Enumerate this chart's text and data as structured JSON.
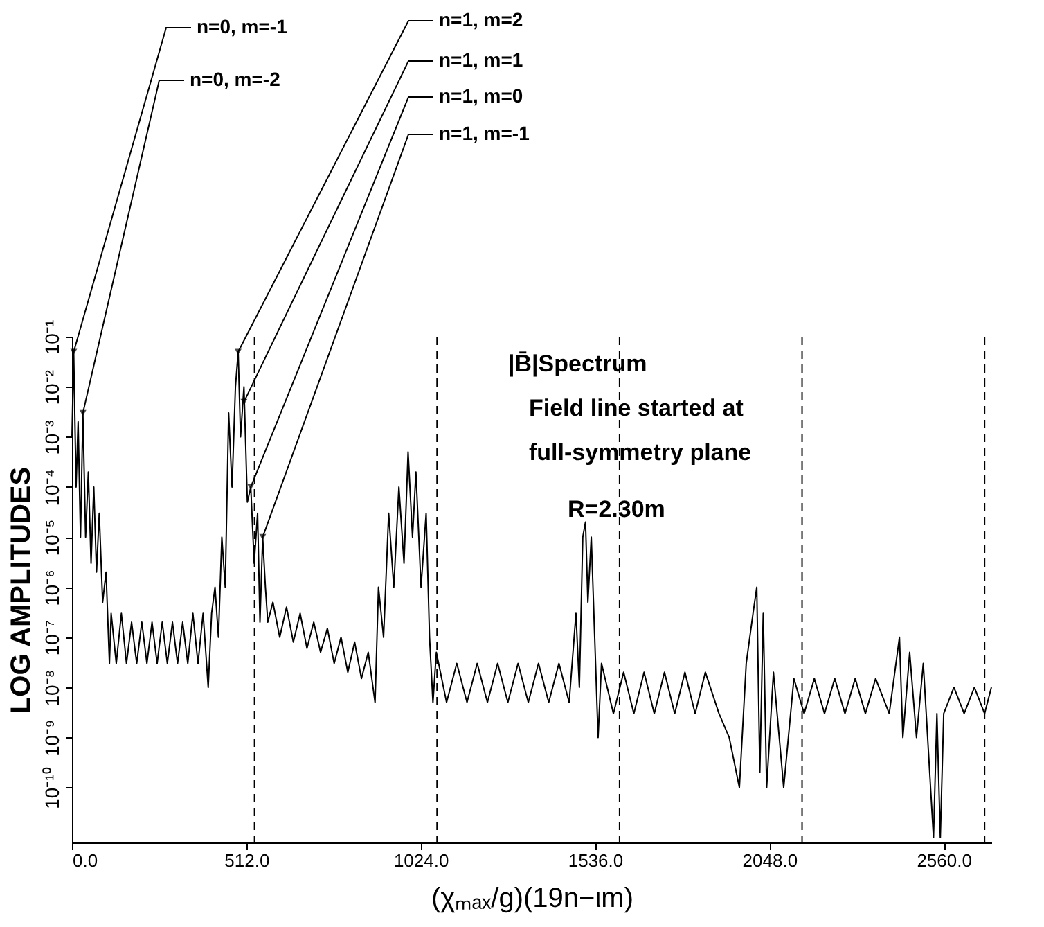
{
  "chart_data": {
    "type": "line",
    "xlabel": "(χₘₐₓ/g)(19n−ιm)",
    "ylabel": "LOG AMPLITUDES",
    "log": "y",
    "grid": false,
    "marker": "none",
    "line_style": "solid",
    "xlim": [
      0,
      2700
    ],
    "ylim": [
      8e-12,
      0.1
    ],
    "xticks": [
      {
        "value": 0,
        "label": "0.0"
      },
      {
        "value": 512,
        "label": "512.0"
      },
      {
        "value": 1024,
        "label": "1024.0"
      },
      {
        "value": 1536,
        "label": "1536.0"
      },
      {
        "value": 2048,
        "label": "2048.0"
      },
      {
        "value": 2560,
        "label": "2560.0"
      }
    ],
    "yticks": [
      {
        "value": 1e-10,
        "label": "10⁻¹⁰"
      },
      {
        "value": 1e-09,
        "label": "10⁻⁹"
      },
      {
        "value": 1e-08,
        "label": "10⁻⁸"
      },
      {
        "value": 1e-07,
        "label": "10⁻⁷"
      },
      {
        "value": 1e-06,
        "label": "10⁻⁶"
      },
      {
        "value": 1e-05,
        "label": "10⁻⁵"
      },
      {
        "value": 0.0001,
        "label": "10⁻⁴"
      },
      {
        "value": 0.001,
        "label": "10⁻³"
      },
      {
        "value": 0.01,
        "label": "10⁻²"
      },
      {
        "value": 0.1,
        "label": "10⁻¹"
      }
    ],
    "series": [
      {
        "color": "#000000",
        "x": [
          0,
          5,
          12,
          18,
          25,
          32,
          40,
          48,
          56,
          64,
          72,
          80,
          90,
          100,
          110,
          115,
          130,
          145,
          160,
          175,
          190,
          205,
          220,
          235,
          250,
          265,
          280,
          295,
          310,
          325,
          340,
          355,
          370,
          385,
          400,
          410,
          420,
          430,
          440,
          450,
          460,
          470,
          480,
          488,
          495,
          505,
          515,
          525,
          535,
          545,
          552,
          560,
          568,
          575,
          590,
          610,
          630,
          650,
          670,
          690,
          710,
          730,
          750,
          770,
          790,
          810,
          830,
          850,
          870,
          890,
          900,
          915,
          930,
          945,
          960,
          975,
          987,
          1000,
          1010,
          1025,
          1040,
          1050,
          1060,
          1070,
          1100,
          1130,
          1160,
          1190,
          1220,
          1250,
          1280,
          1310,
          1340,
          1370,
          1400,
          1430,
          1460,
          1480,
          1490,
          1500,
          1508,
          1515,
          1525,
          1535,
          1545,
          1555,
          1590,
          1620,
          1650,
          1680,
          1710,
          1740,
          1770,
          1800,
          1830,
          1860,
          1900,
          1930,
          1960,
          1980,
          2000,
          2011,
          2020,
          2030,
          2040,
          2060,
          2090,
          2120,
          2150,
          2180,
          2210,
          2240,
          2270,
          2300,
          2330,
          2360,
          2400,
          2430,
          2440,
          2460,
          2480,
          2500,
          2530,
          2540,
          2550,
          2560,
          2590,
          2620,
          2650,
          2680,
          2700
        ],
        "values": [
          0.001,
          0.05,
          0.0001,
          0.002,
          1e-05,
          0.003,
          1e-05,
          0.0002,
          3e-06,
          0.0001,
          2e-06,
          3e-05,
          5e-07,
          2e-06,
          3e-08,
          3e-07,
          3e-08,
          3e-07,
          3e-08,
          2e-07,
          3e-08,
          2e-07,
          3e-08,
          2e-07,
          3e-08,
          2e-07,
          3e-08,
          2e-07,
          3e-08,
          2e-07,
          3e-08,
          3e-07,
          3e-08,
          3e-07,
          1e-08,
          3e-07,
          1e-06,
          1e-07,
          1e-05,
          1e-06,
          0.003,
          0.0001,
          0.01,
          0.05,
          0.001,
          0.01,
          5e-05,
          0.0001,
          3e-06,
          3e-05,
          2e-07,
          1e-05,
          1e-06,
          2e-07,
          5e-07,
          1e-07,
          4e-07,
          8e-08,
          3e-07,
          6e-08,
          2e-07,
          5e-08,
          1.5e-07,
          3e-08,
          1e-07,
          2e-08,
          8e-08,
          1.5e-08,
          5e-08,
          5e-09,
          1e-06,
          1e-07,
          3e-05,
          1e-06,
          0.0001,
          3e-06,
          0.0005,
          1e-05,
          0.0002,
          1e-06,
          3e-05,
          1e-07,
          5e-09,
          5e-08,
          5e-09,
          3e-08,
          5e-09,
          3e-08,
          5e-09,
          3e-08,
          5e-09,
          3e-08,
          5e-09,
          3e-08,
          5e-09,
          3e-08,
          5e-09,
          3e-07,
          1e-08,
          1e-05,
          2e-05,
          5e-07,
          1e-05,
          1e-07,
          1e-09,
          3e-08,
          3e-09,
          2e-08,
          3e-09,
          2e-08,
          3e-09,
          2e-08,
          3e-09,
          2e-08,
          3e-09,
          2e-08,
          3e-09,
          1e-09,
          1e-10,
          3e-08,
          3e-07,
          1e-06,
          2e-10,
          3e-07,
          1e-10,
          2e-08,
          1e-10,
          1.5e-08,
          3e-09,
          1.5e-08,
          3e-09,
          1.5e-08,
          3e-09,
          1.5e-08,
          3e-09,
          1.5e-08,
          3e-09,
          1e-07,
          1e-09,
          5e-08,
          1e-09,
          3e-08,
          1e-11,
          3e-09,
          1e-11,
          3e-09,
          1e-08,
          3e-09,
          1e-08,
          3e-09,
          1e-08
        ]
      }
    ],
    "ref_lines": [
      {
        "axis": "x",
        "value": 536,
        "line_style": "dashed",
        "color": "#000000"
      },
      {
        "axis": "x",
        "value": 1072,
        "line_style": "dashed",
        "color": "#000000"
      },
      {
        "axis": "x",
        "value": 1608,
        "line_style": "dashed",
        "color": "#000000"
      },
      {
        "axis": "x",
        "value": 2144,
        "line_style": "dashed",
        "color": "#000000"
      },
      {
        "axis": "x",
        "value": 2680,
        "line_style": "dashed",
        "color": "#000000"
      }
    ],
    "annotations": [
      {
        "text": "n=0, m=-1",
        "x": 5,
        "y": 0.05
      },
      {
        "text": "n=0, m=-2",
        "x": 32,
        "y": 0.003
      },
      {
        "text": "n=1, m=2",
        "x": 488,
        "y": 0.05
      },
      {
        "text": "n=1, m=1",
        "x": 505,
        "y": 0.005
      },
      {
        "text": "n=1, m=0",
        "x": 525,
        "y": 0.0001
      },
      {
        "text": "n=1, m=-1",
        "x": 560,
        "y": 1e-05
      },
      "|B̄|Spectrum",
      "Field line started at",
      "full-symmetry plane",
      "R=2.30m"
    ]
  }
}
